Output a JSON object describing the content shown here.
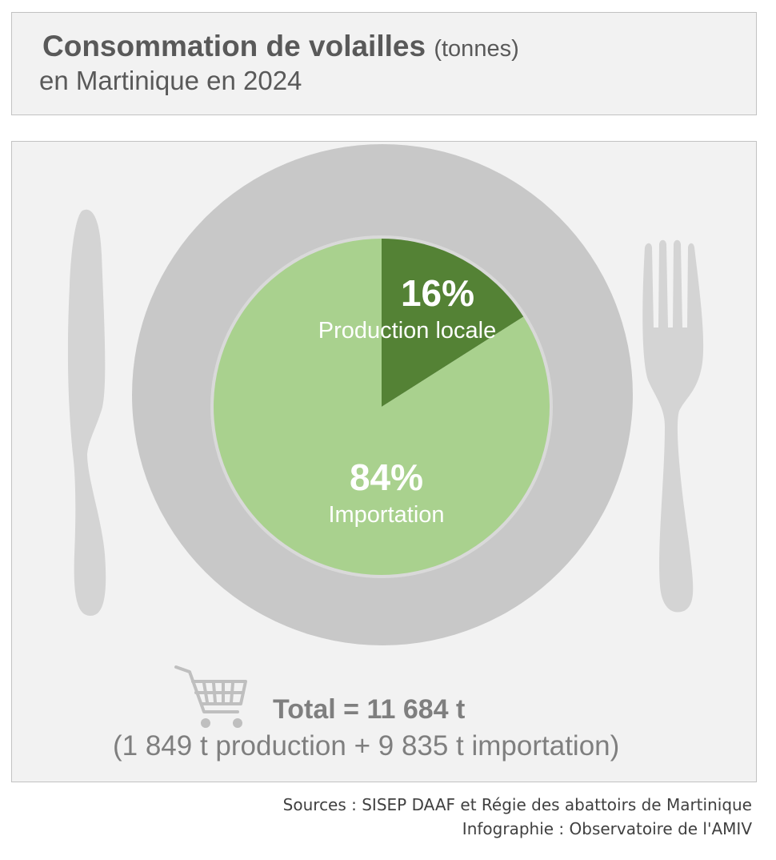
{
  "header": {
    "title": "Consommation de volailles",
    "title_unit": "(tonnes)",
    "subtitle": "en Martinique en 2024"
  },
  "chart_data": {
    "type": "pie",
    "slices": [
      {
        "label": "Production locale",
        "value": 16,
        "value_label": "16%",
        "color": "#548235"
      },
      {
        "label": "Importation",
        "value": 84,
        "value_label": "84%",
        "color": "#a9d18e"
      }
    ]
  },
  "colors": {
    "panel": "#f2f2f2",
    "plate": "#c8c8c8",
    "cutlery": "#d4d4d4",
    "text": "#595959"
  },
  "icons": [
    "knife-icon",
    "fork-icon",
    "shopping-cart-icon"
  ],
  "summary": {
    "total": "Total = 11 684 t",
    "detail": "(1 849 t production + 9 835 t importation)"
  },
  "credits": {
    "sources": "Sources : SISEP DAAF et Régie des abattoirs de Martinique",
    "infographie": "Infographie : Observatoire de l'AMIV"
  }
}
